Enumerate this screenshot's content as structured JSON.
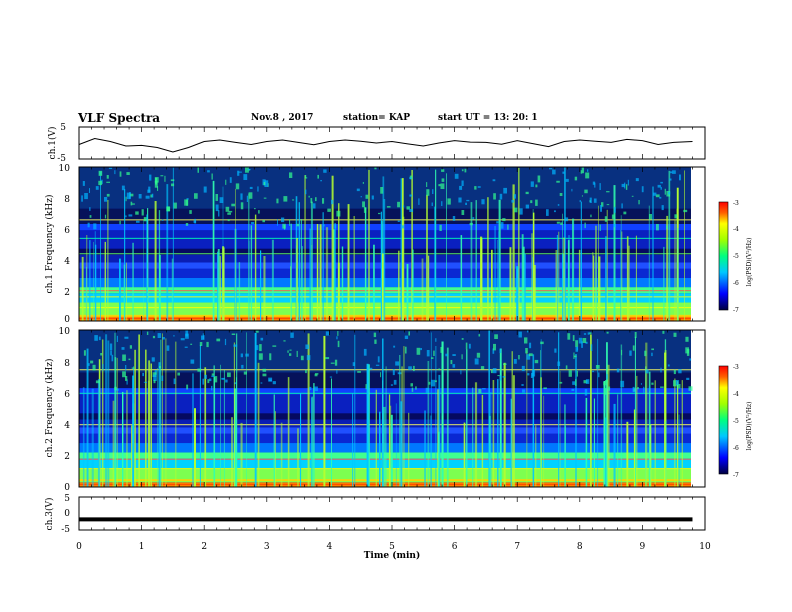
{
  "header": {
    "title": "VLF Spectra",
    "date": "Nov.8 , 2017",
    "station": "station= KAP",
    "start": "start UT = 13: 20: 1"
  },
  "colors": {
    "spectrum_low": "#000060",
    "spectrum_mid": "#00ff88",
    "spectrum_high": "#ff0000",
    "trace": "#000000"
  },
  "chart_data": [
    {
      "type": "line",
      "name": "ch1-waveform",
      "ylabel": "ch.1(V)",
      "ylim": [
        -5,
        5
      ],
      "xlim": [
        0,
        10
      ],
      "yticks": [
        "5",
        "-5"
      ],
      "x": [
        0,
        0.25,
        0.5,
        0.75,
        1.0,
        1.25,
        1.5,
        1.75,
        2.0,
        2.25,
        2.5,
        2.75,
        3.0,
        3.25,
        3.5,
        3.75,
        4.0,
        4.25,
        4.5,
        4.75,
        5.0,
        5.25,
        5.5,
        5.75,
        6.0,
        6.25,
        6.5,
        6.75,
        7.0,
        7.25,
        7.5,
        7.75,
        8.0,
        8.25,
        8.5,
        8.75,
        9.0,
        9.25,
        9.5,
        9.8
      ],
      "values": [
        -0.5,
        1.5,
        0.5,
        -1.0,
        -0.8,
        -1.5,
        -3.0,
        -1.5,
        0.5,
        1.0,
        0.2,
        -0.5,
        0.5,
        1.0,
        0.2,
        -0.6,
        0.5,
        1.0,
        0.6,
        0.0,
        0.5,
        -0.3,
        -1.0,
        0.0,
        0.8,
        0.3,
        0.2,
        -0.4,
        0.8,
        -0.2,
        -1.2,
        0.5,
        1.0,
        0.6,
        0.2,
        1.2,
        0.8,
        -0.5,
        0.2,
        0.5
      ]
    },
    {
      "type": "heatmap",
      "name": "ch1-spectrogram",
      "ylabel": "ch.1 Frequency (kHz)",
      "xlim": [
        0,
        10
      ],
      "ylim": [
        0,
        10
      ],
      "yticks": [
        "0",
        "2",
        "4",
        "6",
        "8",
        "10"
      ],
      "colorbar": {
        "label": "log(PSD)(V²/Hz)",
        "range": [
          -7,
          -3
        ],
        "ticks": [
          "-3",
          "-4",
          "-5",
          "-6",
          "-7"
        ]
      }
    },
    {
      "type": "heatmap",
      "name": "ch2-spectrogram",
      "ylabel": "ch.2 Frequency (kHz)",
      "xlim": [
        0,
        10
      ],
      "ylim": [
        0,
        10
      ],
      "yticks": [
        "0",
        "2",
        "4",
        "6",
        "8",
        "10"
      ],
      "colorbar": {
        "label": "log(PSD)(V²/Hz)",
        "range": [
          -7,
          -3
        ],
        "ticks": [
          "-3",
          "-4",
          "-5",
          "-6",
          "-7"
        ]
      }
    },
    {
      "type": "line",
      "name": "ch3-waveform",
      "ylabel": "ch.3(V)",
      "ylim": [
        -5,
        5
      ],
      "xlim": [
        0,
        10
      ],
      "yticks": [
        "5",
        "0",
        "-5"
      ],
      "x": [
        0,
        9.8
      ],
      "values": [
        -1.8,
        -1.8
      ]
    }
  ],
  "xaxis": {
    "label": "Time (min)",
    "ticks": [
      "0",
      "1",
      "2",
      "3",
      "4",
      "5",
      "6",
      "7",
      "8",
      "9",
      "10"
    ]
  }
}
